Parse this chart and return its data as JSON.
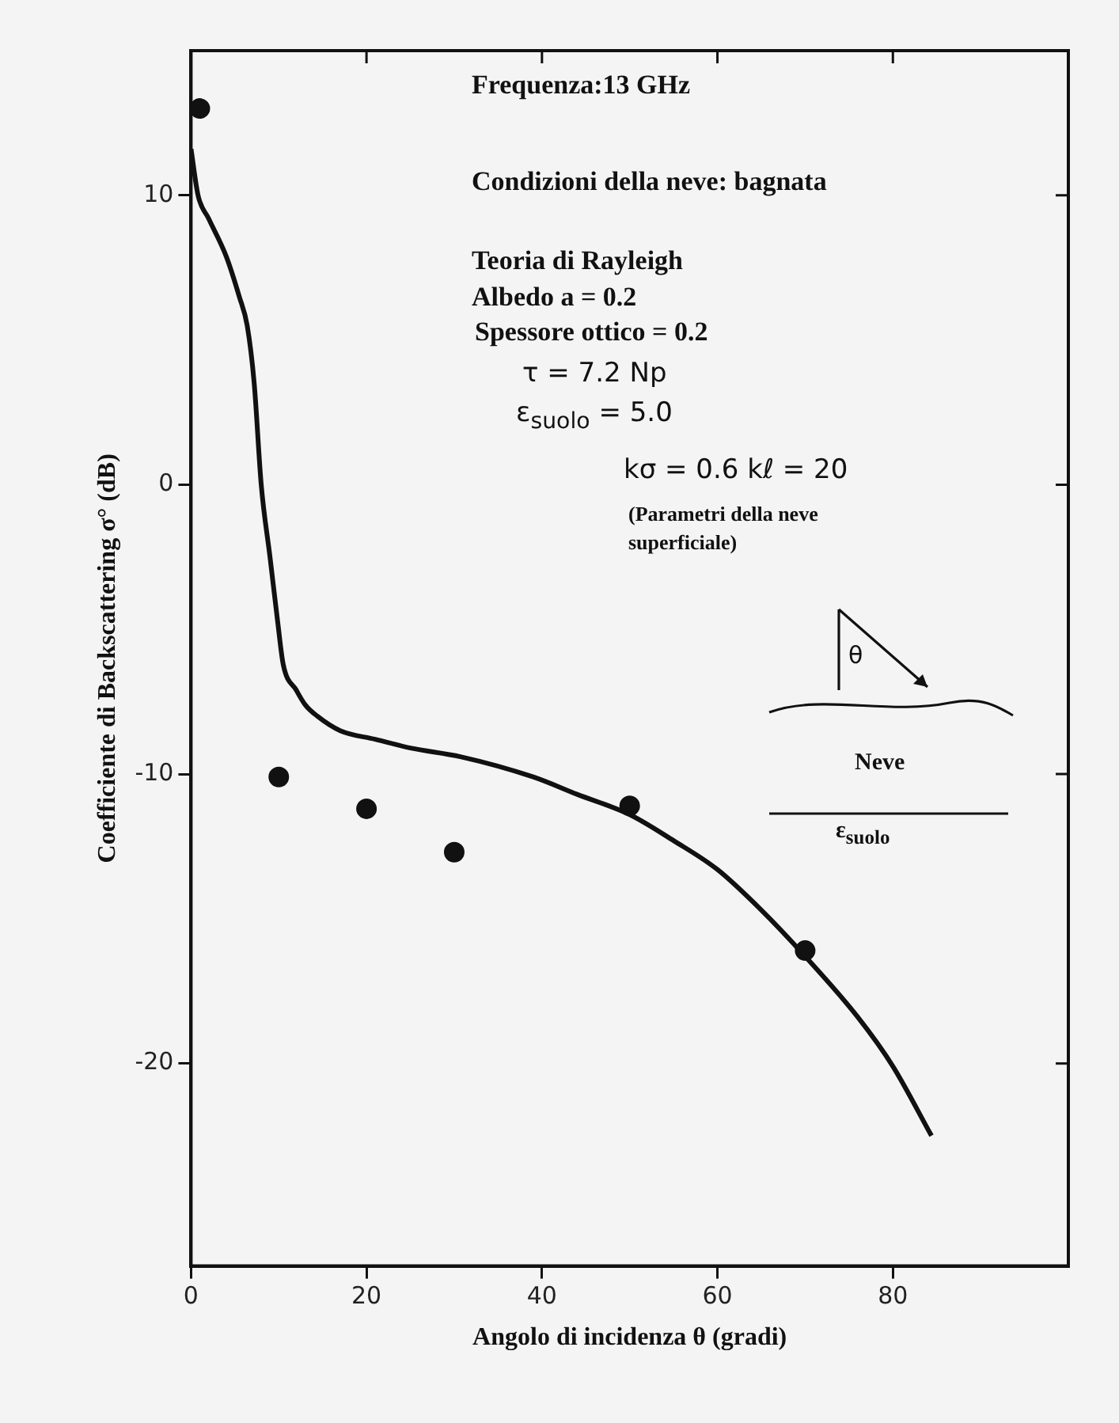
{
  "chart_data": {
    "type": "line",
    "xlabel": "Angolo di incidenza θ (gradi)",
    "ylabel": "Coefficiente di Backscattering σ° (dB)",
    "xlim": [
      0,
      100
    ],
    "ylim": [
      -27,
      15
    ],
    "xticks": [
      0,
      20,
      40,
      60,
      80
    ],
    "yticks": [
      -20,
      -10,
      0,
      10
    ],
    "grid": false,
    "legend": false,
    "series": [
      {
        "color": "#111111",
        "marker": "none",
        "x": [
          0,
          0.8,
          2,
          4,
          5.5,
          6.4,
          7.2,
          8,
          9,
          9.9,
          10.5,
          12,
          13,
          14.4,
          17,
          21,
          25,
          30.7,
          39,
          44,
          50,
          55,
          60,
          65,
          70,
          76,
          80,
          84.4
        ],
        "values": [
          11.6,
          10,
          9.2,
          7.9,
          6.5,
          5.5,
          3.5,
          0,
          -2.5,
          -4.8,
          -6.2,
          -7.1,
          -7.6,
          -8.0,
          -8.5,
          -8.8,
          -9.1,
          -9.4,
          -10.1,
          -10.7,
          -11.4,
          -12.3,
          -13.3,
          -14.7,
          -16.3,
          -18.4,
          -20.1,
          -22.5
        ]
      },
      {
        "type": "scatter",
        "color": "#111111",
        "marker": "circle",
        "x": [
          1,
          10,
          20,
          30,
          50,
          70
        ],
        "values": [
          13,
          -10.1,
          -11.2,
          -12.7,
          -11.1,
          -16.1
        ]
      }
    ],
    "annotations": [
      "Frequenza:13 GHz",
      "Condizioni della neve: bagnata",
      "Teoria di Rayleigh",
      "Albedo a = 0.2",
      "Spessore ottico = 0.2",
      "τ = 7.2 Np",
      "ε$_{suolo}$ = 5.0",
      "kσ = 0.6   kℓ = 20",
      "(Parametri della neve superficiale)",
      "θ",
      "Neve",
      "ε$_{suolo}$"
    ]
  }
}
